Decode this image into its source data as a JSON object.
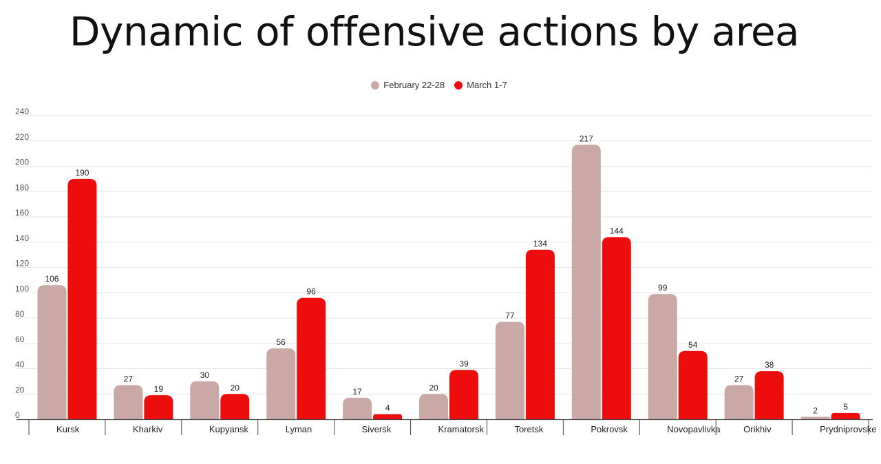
{
  "title": "Dynamic of offensive actions by area",
  "legend": {
    "series_a": "February 22-28",
    "series_b": "March 1-7"
  },
  "colors": {
    "series_a": "#c9a8a6",
    "series_b": "#ee0d0d",
    "grid": "#e6e6e6",
    "axis": "#444444"
  },
  "chart_data": {
    "type": "bar",
    "title": "Dynamic of offensive actions by area",
    "xlabel": "",
    "ylabel": "",
    "ylim": [
      0,
      240
    ],
    "yticks": [
      0,
      20,
      40,
      60,
      80,
      100,
      120,
      140,
      160,
      180,
      200,
      220,
      240
    ],
    "grid": true,
    "legend_position": "top-center",
    "categories": [
      "Kursk",
      "Kharkiv",
      "Kupyansk",
      "Lyman",
      "Siversk",
      "Kramatorsk",
      "Toretsk",
      "Pokrovsk",
      "Novopavlivka",
      "Orikhiv",
      "Prydniprovske"
    ],
    "series": [
      {
        "name": "February 22-28",
        "values": [
          106,
          27,
          30,
          56,
          17,
          20,
          77,
          217,
          99,
          27,
          2
        ]
      },
      {
        "name": "March 1-7",
        "values": [
          190,
          19,
          20,
          96,
          4,
          39,
          134,
          144,
          54,
          38,
          5
        ]
      }
    ]
  }
}
